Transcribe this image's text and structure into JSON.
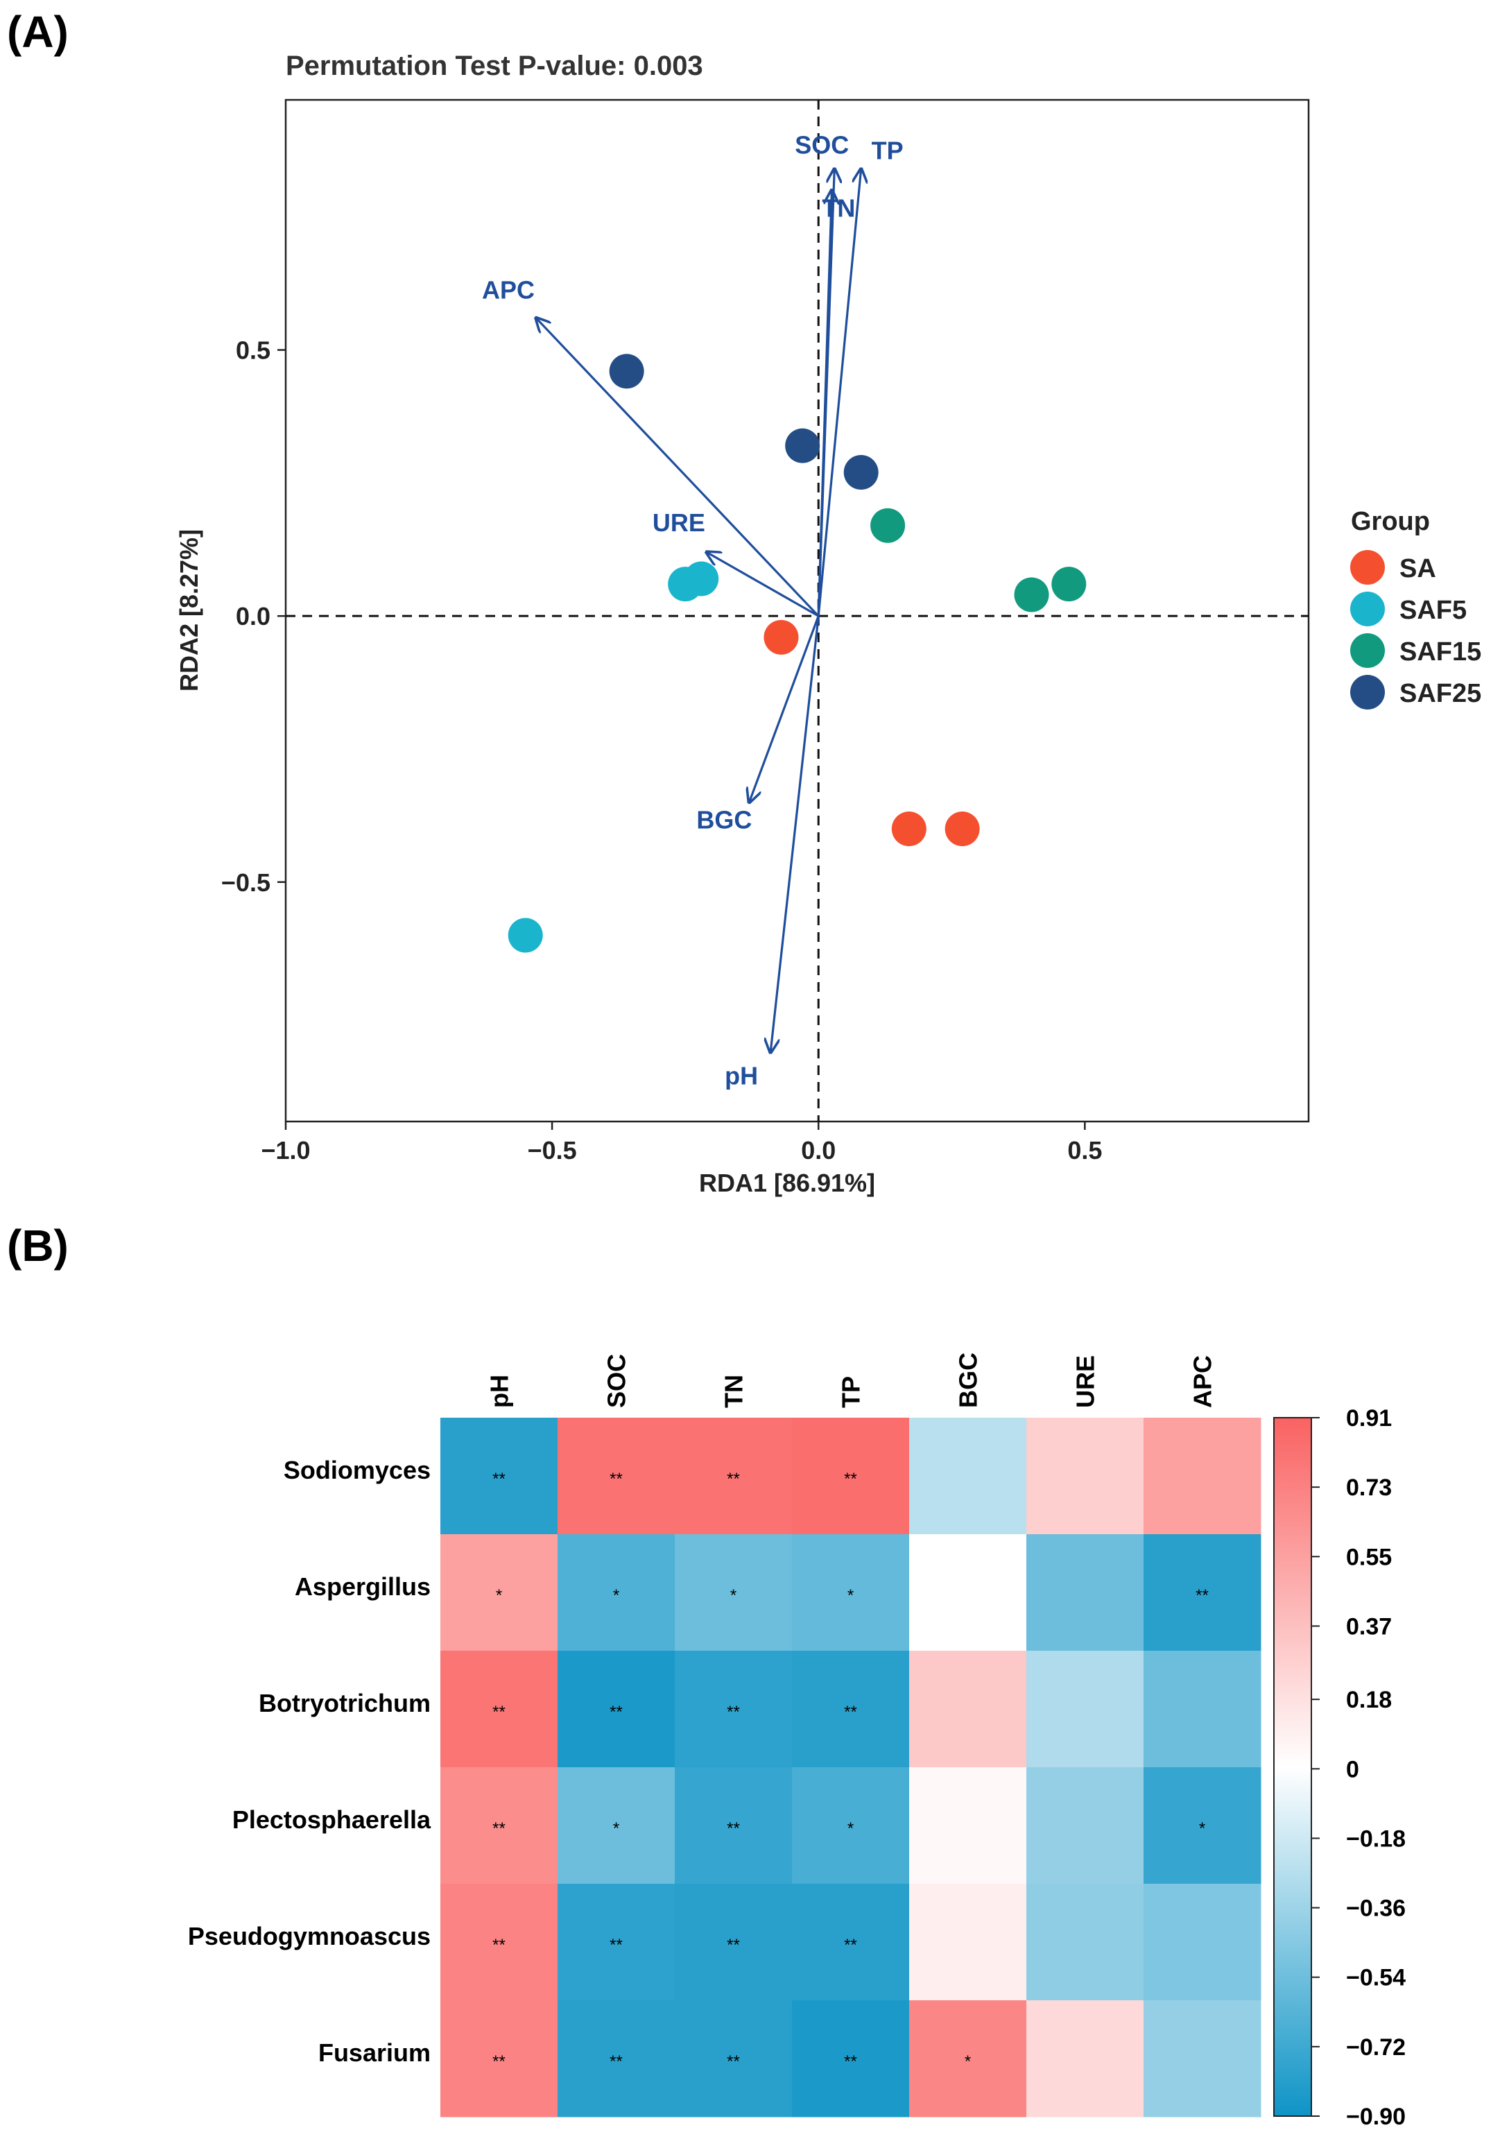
{
  "panel_a_label": "(A)",
  "panel_b_label": "(B)",
  "chart_data": [
    {
      "type": "scatter",
      "subtype": "RDA biplot",
      "title": "Permutation Test P-value: 0.003",
      "xlabel": "RDA1 [86.91%]",
      "ylabel": "RDA2 [8.27%]",
      "xlim": [
        -1.0,
        0.92
      ],
      "ylim": [
        -0.95,
        0.97
      ],
      "xticks": [
        {
          "value": -1.0,
          "label": "−1.0"
        },
        {
          "value": -0.5,
          "label": "−0.5"
        },
        {
          "value": 0.0,
          "label": "0.0"
        },
        {
          "value": 0.5,
          "label": "0.5"
        }
      ],
      "yticks": [
        {
          "value": 0.5,
          "label": "0.5"
        },
        {
          "value": 0.0,
          "label": "0.0"
        },
        {
          "value": -0.5,
          "label": "−0.5"
        }
      ],
      "legend_title": "Group",
      "groups": [
        {
          "name": "SA",
          "color": "#f4502f",
          "points": [
            [
              -0.07,
              -0.04
            ],
            [
              0.17,
              -0.4
            ],
            [
              0.27,
              -0.4
            ]
          ]
        },
        {
          "name": "SAF5",
          "color": "#1ab4cc",
          "points": [
            [
              -0.25,
              0.06
            ],
            [
              -0.22,
              0.07
            ],
            [
              -0.55,
              -0.6
            ]
          ]
        },
        {
          "name": "SAF15",
          "color": "#119a7e",
          "points": [
            [
              0.13,
              0.17
            ],
            [
              0.4,
              0.04
            ],
            [
              0.47,
              0.06
            ]
          ]
        },
        {
          "name": "SAF25",
          "color": "#244d86",
          "points": [
            [
              -0.36,
              0.46
            ],
            [
              -0.03,
              0.32
            ],
            [
              0.08,
              0.27
            ]
          ]
        }
      ],
      "vectors": [
        {
          "label": "SOC",
          "x": 0.03,
          "y": 0.84
        },
        {
          "label": "TN",
          "x": 0.025,
          "y": 0.8
        },
        {
          "label": "TP",
          "x": 0.08,
          "y": 0.84
        },
        {
          "label": "APC",
          "x": -0.53,
          "y": 0.56
        },
        {
          "label": "URE",
          "x": -0.21,
          "y": 0.12
        },
        {
          "label": "BGC",
          "x": -0.13,
          "y": -0.35
        },
        {
          "label": "pH",
          "x": -0.09,
          "y": -0.82
        }
      ]
    },
    {
      "type": "heatmap",
      "columns": [
        "pH",
        "SOC",
        "TN",
        "TP",
        "BGC",
        "URE",
        "APC"
      ],
      "rows": [
        "Sodiomyces",
        "Aspergillus",
        "Botryotrichum",
        "Plectosphaerella",
        "Pseudogymnoascus",
        "Fusarium"
      ],
      "values": [
        [
          -0.8,
          0.82,
          0.82,
          0.84,
          -0.26,
          0.28,
          0.55
        ],
        [
          0.55,
          -0.66,
          -0.55,
          -0.58,
          0.0,
          -0.55,
          -0.8
        ],
        [
          0.8,
          -0.85,
          -0.78,
          -0.8,
          0.32,
          -0.3,
          -0.55
        ],
        [
          0.66,
          -0.55,
          -0.75,
          -0.68,
          0.04,
          -0.4,
          -0.75
        ],
        [
          0.72,
          -0.78,
          -0.8,
          -0.8,
          0.1,
          -0.42,
          -0.48
        ],
        [
          0.72,
          -0.8,
          -0.8,
          -0.85,
          0.7,
          0.22,
          -0.4
        ]
      ],
      "significance": [
        [
          "**",
          "**",
          "**",
          "**",
          "",
          "",
          ""
        ],
        [
          "*",
          "*",
          "*",
          "*",
          "",
          "",
          "**"
        ],
        [
          "**",
          "**",
          "**",
          "**",
          "",
          "",
          ""
        ],
        [
          "**",
          "*",
          "**",
          "*",
          "",
          "",
          "*"
        ],
        [
          "**",
          "**",
          "**",
          "**",
          "",
          "",
          ""
        ],
        [
          "**",
          "**",
          "**",
          "**",
          "*",
          "",
          ""
        ]
      ],
      "colorbar": {
        "min": -0.9,
        "max": 0.91,
        "low_color": "#0e94c6",
        "mid_color": "#ffffff",
        "high_color": "#fa6262",
        "ticks": [
          {
            "value": 0.91,
            "label": "0.91"
          },
          {
            "value": 0.73,
            "label": "0.73"
          },
          {
            "value": 0.55,
            "label": "0.55"
          },
          {
            "value": 0.37,
            "label": "0.37"
          },
          {
            "value": 0.18,
            "label": "0.18"
          },
          {
            "value": 0.0,
            "label": "0"
          },
          {
            "value": -0.18,
            "label": "−0.18"
          },
          {
            "value": -0.36,
            "label": "−0.36"
          },
          {
            "value": -0.54,
            "label": "−0.54"
          },
          {
            "value": -0.72,
            "label": "−0.72"
          },
          {
            "value": -0.9,
            "label": "−0.90"
          }
        ]
      }
    }
  ]
}
